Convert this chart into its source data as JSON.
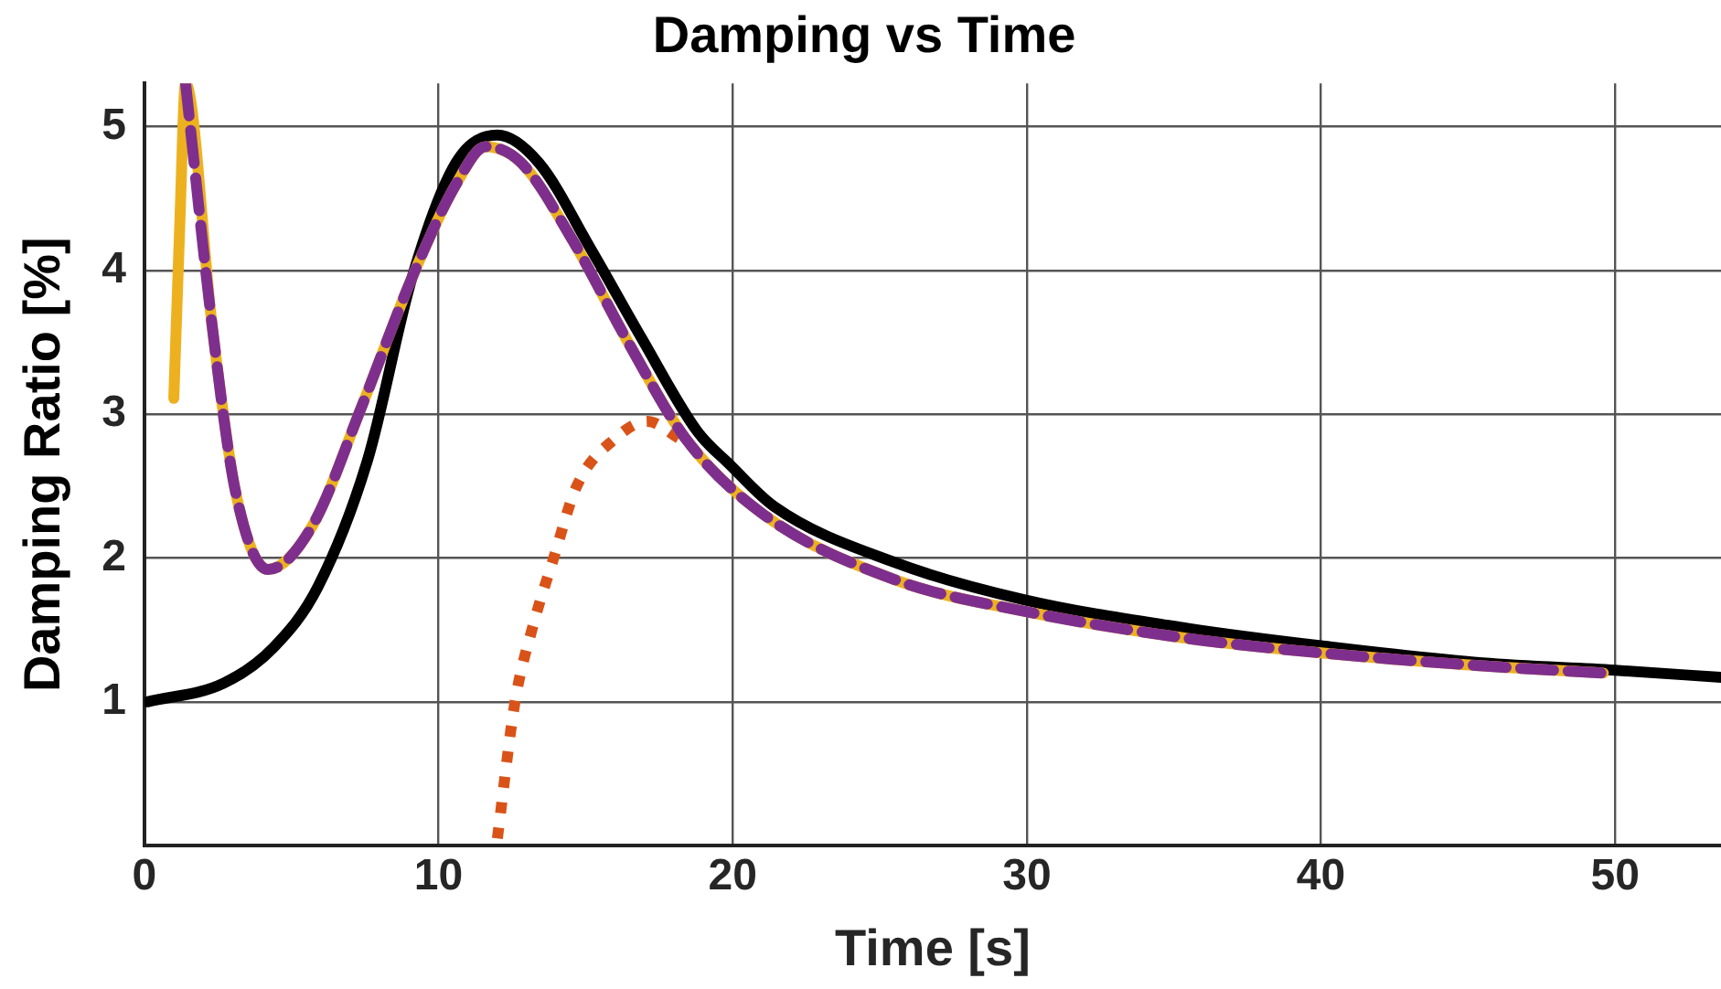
{
  "chart_data": {
    "type": "line",
    "title": "Damping vs Time",
    "xlabel": "Time [s]",
    "ylabel": "Damping Ratio [%]",
    "xlim": [
      0,
      53.6
    ],
    "xticks": [
      0,
      10,
      20,
      30,
      40,
      50
    ],
    "ylim": [
      0,
      5.3
    ],
    "yticks": [
      1,
      2,
      3,
      4,
      5
    ],
    "grid": true,
    "legend": false,
    "marker": "none",
    "series": [
      {
        "color": "#000000",
        "line_style": "solid",
        "x": [
          0.1,
          2.7,
          4.4,
          5.9,
          7.6,
          9.1,
          10.6,
          12.0,
          13.4,
          15.2,
          16.9,
          18.8,
          19.9,
          21.4,
          25.5,
          29.9,
          35.5,
          40.0,
          45.5,
          50.0,
          53.6
        ],
        "values": [
          1.0,
          1.13,
          1.38,
          1.8,
          2.69,
          3.95,
          4.75,
          4.94,
          4.75,
          4.14,
          3.53,
          2.88,
          2.65,
          2.36,
          1.97,
          1.71,
          1.51,
          1.39,
          1.27,
          1.22,
          1.17
        ]
      },
      {
        "color": "#D95319",
        "line_style": "dotted",
        "x": [
          12.0,
          12.6,
          13.2,
          13.9,
          14.7,
          16.0,
          17.1,
          18.2
        ],
        "values": [
          0.05,
          1.0,
          1.52,
          1.99,
          2.5,
          2.83,
          2.95,
          2.83
        ]
      },
      {
        "color": "#EDB120",
        "line_style": "solid",
        "x": [
          1.0,
          1.2,
          1.4,
          2.3,
          3.1,
          4.2,
          5.7,
          7.4,
          9.1,
          10.6,
          11.6,
          12.8,
          14.5,
          16.5,
          18.4,
          21.0,
          25.5,
          29.9,
          35.5,
          40.0,
          45.5,
          49.6
        ],
        "values": [
          3.11,
          4.3,
          5.3,
          3.62,
          2.46,
          1.92,
          2.22,
          3.06,
          3.95,
          4.6,
          4.86,
          4.75,
          4.23,
          3.48,
          2.83,
          2.31,
          1.85,
          1.63,
          1.44,
          1.34,
          1.25,
          1.2
        ]
      },
      {
        "color": "#7E2F8E",
        "line_style": "dashed",
        "x": [
          1.4,
          2.3,
          3.1,
          4.2,
          5.7,
          7.4,
          9.1,
          10.6,
          11.6,
          12.8,
          14.5,
          16.5,
          18.4,
          21.0,
          25.5,
          29.9,
          35.5,
          40.0,
          45.5,
          49.6
        ],
        "values": [
          5.3,
          3.62,
          2.46,
          1.92,
          2.22,
          3.06,
          3.95,
          4.6,
          4.86,
          4.75,
          4.23,
          3.48,
          2.83,
          2.31,
          1.85,
          1.63,
          1.44,
          1.34,
          1.25,
          1.2
        ]
      }
    ]
  }
}
